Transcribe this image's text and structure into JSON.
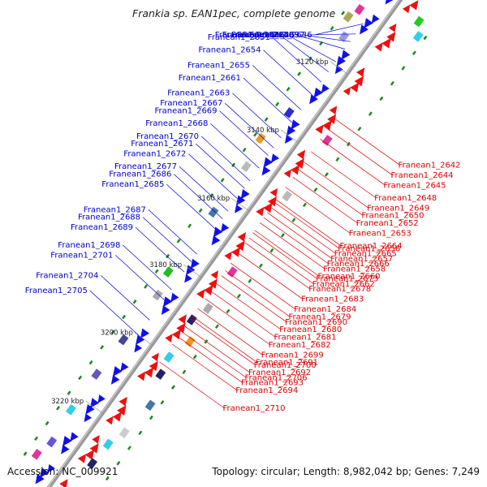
{
  "title": "Frankia sp. EAN1pec, complete genome",
  "footer": {
    "accession": "Accession: NC_009921",
    "topology": "Topology: circular; Length: 8,982,042 bp; Genes: 7,249"
  },
  "colors": {
    "forward_label": "#0000cc",
    "reverse_label": "#dd0000",
    "forward_gene": "#1010ee",
    "reverse_gene": "#ee1010",
    "backbone": "#9a9a9a",
    "tick": "#1a8a1a"
  },
  "ruler_ticks": [
    {
      "label": "3120 kbp",
      "t": 0.165
    },
    {
      "label": "3140 kbp",
      "t": 0.3
    },
    {
      "label": "3160 kbp",
      "t": 0.435
    },
    {
      "label": "3180 kbp",
      "t": 0.566
    },
    {
      "label": "3200 kbp",
      "t": 0.7
    },
    {
      "label": "3220 kbp",
      "t": 0.835
    }
  ],
  "forward_genes": [
    {
      "locus": "Franean1_2636",
      "t": 0.085
    },
    {
      "locus": "Franean1_2637",
      "t": 0.105
    },
    {
      "locus": "Franean1_2639",
      "t": 0.12
    },
    {
      "locus": "Franean1_2640",
      "t": 0.135
    },
    {
      "locus": "Franean1_2646",
      "t": 0.16
    },
    {
      "locus": "Franean1_2647",
      "t": 0.18
    },
    {
      "locus": "Franean1_2651",
      "t": 0.2
    },
    {
      "locus": "Franean1_2654",
      "t": 0.225
    },
    {
      "locus": "Franean1_2655",
      "t": 0.255
    },
    {
      "locus": "Franean1_2661",
      "t": 0.28
    },
    {
      "locus": "Franean1_2663",
      "t": 0.31
    },
    {
      "locus": "Franean1_2667",
      "t": 0.33
    },
    {
      "locus": "Franean1_2669",
      "t": 0.345
    },
    {
      "locus": "Franean1_2668",
      "t": 0.37
    },
    {
      "locus": "Franean1_2670",
      "t": 0.395
    },
    {
      "locus": "Franean1_2671",
      "t": 0.41
    },
    {
      "locus": "Franean1_2672",
      "t": 0.43
    },
    {
      "locus": "Franean1_2677",
      "t": 0.455
    },
    {
      "locus": "Franean1_2686",
      "t": 0.47
    },
    {
      "locus": "Franean1_2685",
      "t": 0.49
    },
    {
      "locus": "Franean1_2687",
      "t": 0.54
    },
    {
      "locus": "Franean1_2688",
      "t": 0.555
    },
    {
      "locus": "Franean1_2689",
      "t": 0.575
    },
    {
      "locus": "Franean1_2698",
      "t": 0.61
    },
    {
      "locus": "Franean1_2701",
      "t": 0.63
    },
    {
      "locus": "Franean1_2704",
      "t": 0.67
    },
    {
      "locus": "Franean1_2705",
      "t": 0.7
    }
  ],
  "reverse_genes": [
    {
      "locus": "Franean1_2642",
      "t": 0.235
    },
    {
      "locus": "Franean1_2644",
      "t": 0.255
    },
    {
      "locus": "Franean1_2645",
      "t": 0.275
    },
    {
      "locus": "Franean1_2648",
      "t": 0.3
    },
    {
      "locus": "Franean1_2649",
      "t": 0.32
    },
    {
      "locus": "Franean1_2650",
      "t": 0.335
    },
    {
      "locus": "Franean1_2652",
      "t": 0.35
    },
    {
      "locus": "Franean1_2653",
      "t": 0.37
    },
    {
      "locus": "Franean1_2664",
      "t": 0.395
    },
    {
      "locus": "Franean1_2656",
      "t": 0.4
    },
    {
      "locus": "Franean1_2665",
      "t": 0.41
    },
    {
      "locus": "Franean1_2657",
      "t": 0.42
    },
    {
      "locus": "Franean1_2666",
      "t": 0.43
    },
    {
      "locus": "Franean1_2658",
      "t": 0.44
    },
    {
      "locus": "Franean1_2660",
      "t": 0.455
    },
    {
      "locus": "Franean1_2673",
      "t": 0.46
    },
    {
      "locus": "Franean1_2662",
      "t": 0.47
    },
    {
      "locus": "Franean1_2678",
      "t": 0.48
    },
    {
      "locus": "Franean1_2683",
      "t": 0.5
    },
    {
      "locus": "Franean1_2684",
      "t": 0.52
    },
    {
      "locus": "Franean1_2679",
      "t": 0.535
    },
    {
      "locus": "Franean1_2690",
      "t": 0.545
    },
    {
      "locus": "Franean1_2680",
      "t": 0.56
    },
    {
      "locus": "Franean1_2681",
      "t": 0.575
    },
    {
      "locus": "Franean1_2682",
      "t": 0.59
    },
    {
      "locus": "Franean1_2699",
      "t": 0.61
    },
    {
      "locus": "Franean1_2691",
      "t": 0.625
    },
    {
      "locus": "Franean1_2700",
      "t": 0.63
    },
    {
      "locus": "Franean1_2692",
      "t": 0.645
    },
    {
      "locus": "Franean1_2706",
      "t": 0.655
    },
    {
      "locus": "Franean1_2693",
      "t": 0.665
    },
    {
      "locus": "Franean1_2694",
      "t": 0.68
    },
    {
      "locus": "Franean1_2710",
      "t": 0.715
    }
  ]
}
